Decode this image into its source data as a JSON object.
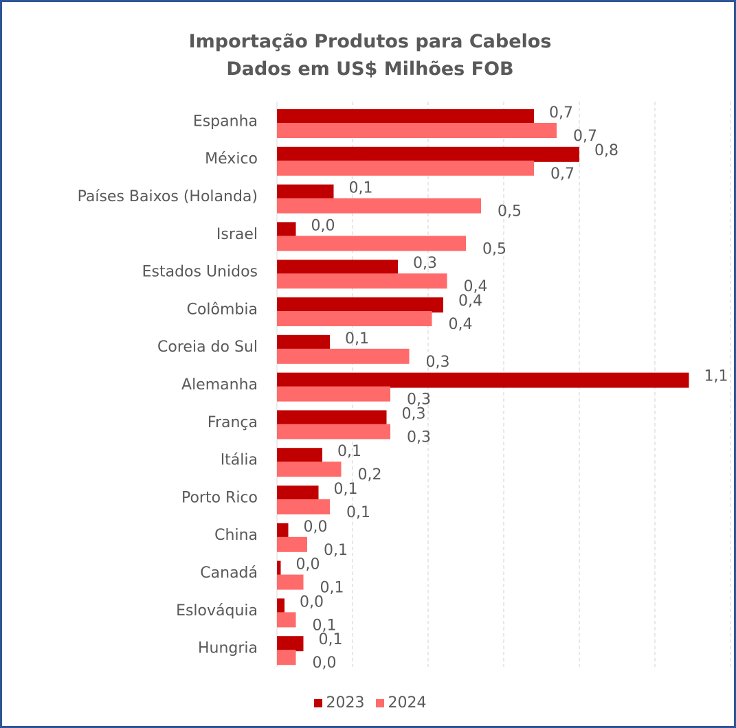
{
  "chart_data": {
    "type": "bar",
    "orientation": "horizontal",
    "title": [
      "Importação Produtos para Cabelos",
      "Dados em US$ Milhões FOB"
    ],
    "categories": [
      "Espanha",
      "México",
      "Países Baixos (Holanda)",
      "Israel",
      "Estados Unidos",
      "Colômbia",
      "Coreia do Sul",
      "Alemanha",
      "França",
      "Itália",
      "Porto Rico",
      "China",
      "Canadá",
      "Eslováquia",
      "Hungria"
    ],
    "series": [
      {
        "name": "2023",
        "color": "#c00000",
        "values": [
          0.68,
          0.8,
          0.15,
          0.05,
          0.32,
          0.44,
          0.14,
          1.09,
          0.29,
          0.12,
          0.11,
          0.03,
          0.01,
          0.02,
          0.07
        ],
        "labels": [
          "0,7",
          "0,8",
          "0,1",
          "0,0",
          "0,3",
          "0,4",
          "0,1",
          "1,1",
          "0,3",
          "0,1",
          "0,1",
          "0,0",
          "0,0",
          "0,0",
          "0,1"
        ]
      },
      {
        "name": "2024",
        "color": "#ff6b6b",
        "values": [
          0.74,
          0.68,
          0.54,
          0.5,
          0.45,
          0.41,
          0.35,
          0.3,
          0.3,
          0.17,
          0.14,
          0.08,
          0.07,
          0.05,
          0.05
        ],
        "labels": [
          "0,7",
          "0,7",
          "0,5",
          "0,5",
          "0,4",
          "0,4",
          "0,3",
          "0,3",
          "0,3",
          "0,2",
          "0,1",
          "0,1",
          "0,1",
          "0,1",
          "0,0"
        ]
      }
    ],
    "xlim": [
      0,
      1.2
    ],
    "grid": "vertical-dashed",
    "legend_position": "bottom"
  }
}
